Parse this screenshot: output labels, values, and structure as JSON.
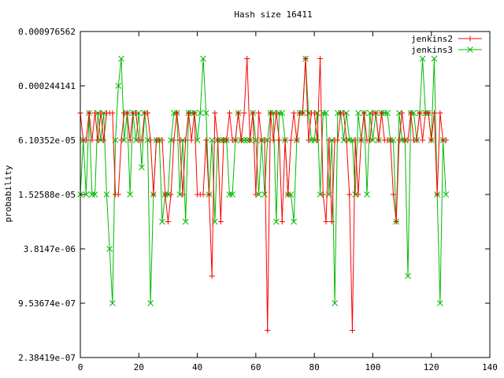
{
  "chart_data": {
    "type": "line",
    "title": "Hash size 16411",
    "xlabel": "",
    "ylabel": "probability",
    "y_scale": "log2",
    "xlim": [
      0,
      140
    ],
    "ylim_exponent": [
      -22,
      -10
    ],
    "x_ticks": [
      0,
      20,
      40,
      60,
      80,
      100,
      120,
      140
    ],
    "y_ticks": [
      {
        "value_exponent": -10,
        "label": "0.000976562"
      },
      {
        "value_exponent": -12,
        "label": "0.000244141"
      },
      {
        "value_exponent": -14,
        "label": "6.10352e-05"
      },
      {
        "value_exponent": -16,
        "label": "1.52588e-05"
      },
      {
        "value_exponent": -18,
        "label": "3.8147e-06"
      },
      {
        "value_exponent": -20,
        "label": "9.53674e-07"
      },
      {
        "value_exponent": -22,
        "label": "2.38419e-07"
      }
    ],
    "grid": false,
    "legend_position": "top-right",
    "series": [
      {
        "name": "jenkins2",
        "color": "#ff0000",
        "marker": "plus",
        "x_start": 0,
        "y_exponent": [
          -13,
          -14,
          -14,
          -13,
          -14,
          -13,
          -14,
          -13,
          -14,
          -13,
          -13,
          -13,
          -16,
          -16,
          -14,
          -13,
          -13,
          -14,
          -13,
          -13,
          -14,
          -14,
          -13,
          -13,
          -14,
          -16,
          -14,
          -14,
          -14,
          -16,
          -17,
          -16,
          -14,
          -13,
          -14,
          -16,
          -14,
          -13,
          -14,
          -13,
          -16,
          -16,
          -16,
          -14,
          -16,
          -19,
          -13,
          -14,
          -17,
          -14,
          -14,
          -13,
          -14,
          -14,
          -13,
          -14,
          -13,
          -11,
          -14,
          -13,
          -16,
          -13,
          -14,
          -14,
          -21,
          -13,
          -14,
          -13,
          -14,
          -17,
          -14,
          -16,
          -14,
          -13,
          -14,
          -13,
          -13,
          -11,
          -14,
          -13,
          -13,
          -14,
          -11,
          -16,
          -17,
          -14,
          -17,
          -14,
          -14,
          -13,
          -13,
          -14,
          -16,
          -21,
          -14,
          -16,
          -14,
          -13,
          -14,
          -14,
          -13,
          -13,
          -14,
          -13,
          -14,
          -14,
          -14,
          -16,
          -17,
          -14,
          -13,
          -14,
          -14,
          -13,
          -14,
          -14,
          -13,
          -14,
          -13,
          -13,
          -14,
          -13,
          -16,
          -13,
          -14,
          -14
        ]
      },
      {
        "name": "jenkins3",
        "color": "#00bb00",
        "marker": "x",
        "x_start": 0,
        "y_exponent": [
          -16,
          -14,
          -16,
          -13,
          -16,
          -16,
          -13,
          -14,
          -13,
          -16,
          -18,
          -20,
          -14,
          -12,
          -11,
          -14,
          -13,
          -16,
          -13,
          -14,
          -13,
          -15,
          -13,
          -14,
          -20,
          -16,
          -14,
          -14,
          -17,
          -16,
          -16,
          -14,
          -13,
          -13,
          -16,
          -14,
          -17,
          -13,
          -13,
          -13,
          -14,
          -13,
          -11,
          -13,
          -16,
          -14,
          -17,
          -14,
          -14,
          -14,
          -14,
          -16,
          -16,
          -14,
          -13,
          -14,
          -14,
          -14,
          -14,
          -13,
          -14,
          -16,
          -14,
          -16,
          -14,
          -13,
          -13,
          -17,
          -13,
          -13,
          -14,
          -16,
          -16,
          -17,
          -14,
          -13,
          -13,
          -11,
          -13,
          -14,
          -14,
          -13,
          -16,
          -13,
          -13,
          -16,
          -14,
          -20,
          -13,
          -13,
          -14,
          -13,
          -14,
          -14,
          -16,
          -13,
          -14,
          -13,
          -16,
          -13,
          -14,
          -13,
          -14,
          -13,
          -13,
          -13,
          -14,
          -14,
          -17,
          -13,
          -14,
          -14,
          -19,
          -13,
          -13,
          -14,
          -13,
          -11,
          -13,
          -13,
          -14,
          -11,
          -16,
          -20,
          -14,
          -16
        ]
      }
    ]
  }
}
